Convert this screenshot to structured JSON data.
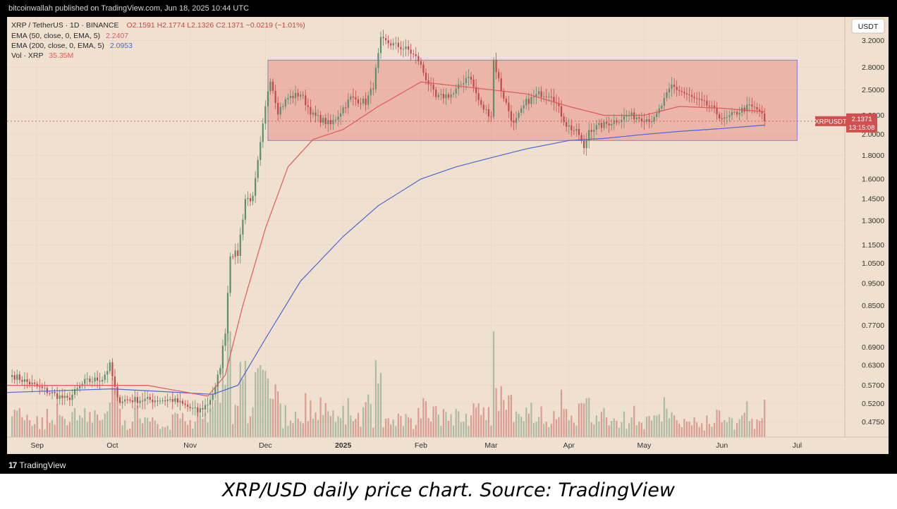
{
  "header": {
    "published": "bitcoinwallah published on TradingView.com, Jun 18, 2025 10:44 UTC"
  },
  "legend": {
    "symbol": "XRP / TetherUS · 1D · BINANCE",
    "ohlc": "O2.1591  H2.1774  L2.1326  C2.1371  −0.0219 (−1.01%)",
    "ema50_label": "EMA (50, close, 0, EMA, 5)",
    "ema50_value": "2.2407",
    "ema200_label": "EMA (200, close, 0, EMA, 5)",
    "ema200_value": "2.0953",
    "vol_label": "Vol · XRP",
    "vol_value": "35.35M"
  },
  "currency_button": "USDT",
  "price_tag": {
    "symbol": "XRPUSDT",
    "price": "2.1371",
    "countdown": "13:15:08"
  },
  "footer": {
    "brand": "TradingView"
  },
  "caption": "XRP/USD daily price chart. Source: TradingView",
  "colors": {
    "background": "#f0e0cf",
    "up": "#5d8f6e",
    "down": "#c04a4a",
    "ema50": "#e05a5a",
    "ema200": "#4a66d8",
    "range_box": "rgba(230,110,110,0.38)"
  },
  "chart_data": {
    "type": "candlestick",
    "scale": "log",
    "ylim": [
      0.44,
      3.6
    ],
    "x_ticks": [
      "Sep",
      "Oct",
      "Nov",
      "Dec",
      "2025",
      "Feb",
      "Mar",
      "Apr",
      "May",
      "Jun",
      "Jul"
    ],
    "x_tick_dates": [
      "2024-09-01",
      "2024-10-01",
      "2024-11-01",
      "2024-12-01",
      "2025-01-01",
      "2025-02-01",
      "2025-03-01",
      "2025-04-01",
      "2025-05-01",
      "2025-06-01",
      "2025-07-01"
    ],
    "y_ticks": [
      "3.2000",
      "2.8000",
      "2.5000",
      "2.2000",
      "2.0000",
      "1.8000",
      "1.6000",
      "1.4500",
      "1.3000",
      "1.1500",
      "1.0500",
      "0.9500",
      "0.8500",
      "0.7700",
      "0.6900",
      "0.6300",
      "0.5700",
      "0.5200",
      "0.4750"
    ],
    "x_range": [
      "2024-08-20",
      "2025-07-20"
    ],
    "anchors": [
      [
        "2024-08-22",
        0.6
      ],
      [
        "2024-09-06",
        0.55
      ],
      [
        "2024-09-13",
        0.53
      ],
      [
        "2024-09-20",
        0.58
      ],
      [
        "2024-09-27",
        0.59
      ],
      [
        "2024-09-30",
        0.63
      ],
      [
        "2024-10-03",
        0.53
      ],
      [
        "2024-10-15",
        0.53
      ],
      [
        "2024-10-25",
        0.53
      ],
      [
        "2024-11-04",
        0.5
      ],
      [
        "2024-11-08",
        0.52
      ],
      [
        "2024-11-11",
        0.56
      ],
      [
        "2024-11-13",
        0.63
      ],
      [
        "2024-11-15",
        0.75
      ],
      [
        "2024-11-17",
        1.1
      ],
      [
        "2024-11-20",
        1.1
      ],
      [
        "2024-11-23",
        1.45
      ],
      [
        "2024-11-26",
        1.45
      ],
      [
        "2024-11-29",
        1.9
      ],
      [
        "2024-12-02",
        2.5
      ],
      [
        "2024-12-03",
        2.65
      ],
      [
        "2024-12-06",
        2.25
      ],
      [
        "2024-12-10",
        2.4
      ],
      [
        "2024-12-15",
        2.45
      ],
      [
        "2024-12-20",
        2.2
      ],
      [
        "2024-12-27",
        2.1
      ],
      [
        "2025-01-04",
        2.4
      ],
      [
        "2025-01-10",
        2.35
      ],
      [
        "2025-01-13",
        2.55
      ],
      [
        "2025-01-16",
        3.2
      ],
      [
        "2025-01-20",
        3.15
      ],
      [
        "2025-01-27",
        3.05
      ],
      [
        "2025-01-31",
        2.9
      ],
      [
        "2025-02-03",
        2.65
      ],
      [
        "2025-02-07",
        2.4
      ],
      [
        "2025-02-14",
        2.45
      ],
      [
        "2025-02-20",
        2.7
      ],
      [
        "2025-02-25",
        2.3
      ],
      [
        "2025-03-01",
        2.2
      ],
      [
        "2025-03-02",
        2.9
      ],
      [
        "2025-03-05",
        2.5
      ],
      [
        "2025-03-10",
        2.1
      ],
      [
        "2025-03-15",
        2.35
      ],
      [
        "2025-03-20",
        2.45
      ],
      [
        "2025-03-25",
        2.45
      ],
      [
        "2025-03-31",
        2.1
      ],
      [
        "2025-04-05",
        2.0
      ],
      [
        "2025-04-07",
        1.85
      ],
      [
        "2025-04-09",
        2.05
      ],
      [
        "2025-04-15",
        2.1
      ],
      [
        "2025-04-25",
        2.2
      ],
      [
        "2025-05-05",
        2.15
      ],
      [
        "2025-05-12",
        2.55
      ],
      [
        "2025-05-20",
        2.4
      ],
      [
        "2025-05-27",
        2.3
      ],
      [
        "2025-06-02",
        2.15
      ],
      [
        "2025-06-08",
        2.25
      ],
      [
        "2025-06-12",
        2.3
      ],
      [
        "2025-06-16",
        2.25
      ],
      [
        "2025-06-18",
        2.137
      ]
    ],
    "ema50_path": [
      [
        "2024-08-20",
        0.57
      ],
      [
        "2024-10-15",
        0.57
      ],
      [
        "2024-11-08",
        0.54
      ],
      [
        "2024-11-15",
        0.6
      ],
      [
        "2024-11-22",
        0.85
      ],
      [
        "2024-12-01",
        1.25
      ],
      [
        "2024-12-10",
        1.7
      ],
      [
        "2024-12-20",
        1.95
      ],
      [
        "2025-01-01",
        2.05
      ],
      [
        "2025-01-15",
        2.3
      ],
      [
        "2025-02-01",
        2.6
      ],
      [
        "2025-02-15",
        2.55
      ],
      [
        "2025-03-01",
        2.5
      ],
      [
        "2025-03-15",
        2.45
      ],
      [
        "2025-04-01",
        2.3
      ],
      [
        "2025-04-15",
        2.2
      ],
      [
        "2025-05-01",
        2.2
      ],
      [
        "2025-05-15",
        2.3
      ],
      [
        "2025-06-01",
        2.28
      ],
      [
        "2025-06-18",
        2.24
      ]
    ],
    "ema200_path": [
      [
        "2024-08-20",
        0.55
      ],
      [
        "2024-10-01",
        0.56
      ],
      [
        "2024-11-10",
        0.545
      ],
      [
        "2024-11-20",
        0.57
      ],
      [
        "2024-12-01",
        0.72
      ],
      [
        "2024-12-15",
        0.96
      ],
      [
        "2025-01-01",
        1.2
      ],
      [
        "2025-01-15",
        1.4
      ],
      [
        "2025-02-01",
        1.6
      ],
      [
        "2025-02-15",
        1.7
      ],
      [
        "2025-03-01",
        1.78
      ],
      [
        "2025-03-15",
        1.86
      ],
      [
        "2025-04-01",
        1.94
      ],
      [
        "2025-04-15",
        1.96
      ],
      [
        "2025-05-01",
        2.0
      ],
      [
        "2025-05-15",
        2.03
      ],
      [
        "2025-06-01",
        2.06
      ],
      [
        "2025-06-18",
        2.095
      ]
    ],
    "range_box": {
      "start": "2024-12-02",
      "end": "2025-07-01",
      "low": 1.94,
      "high": 2.9
    }
  }
}
